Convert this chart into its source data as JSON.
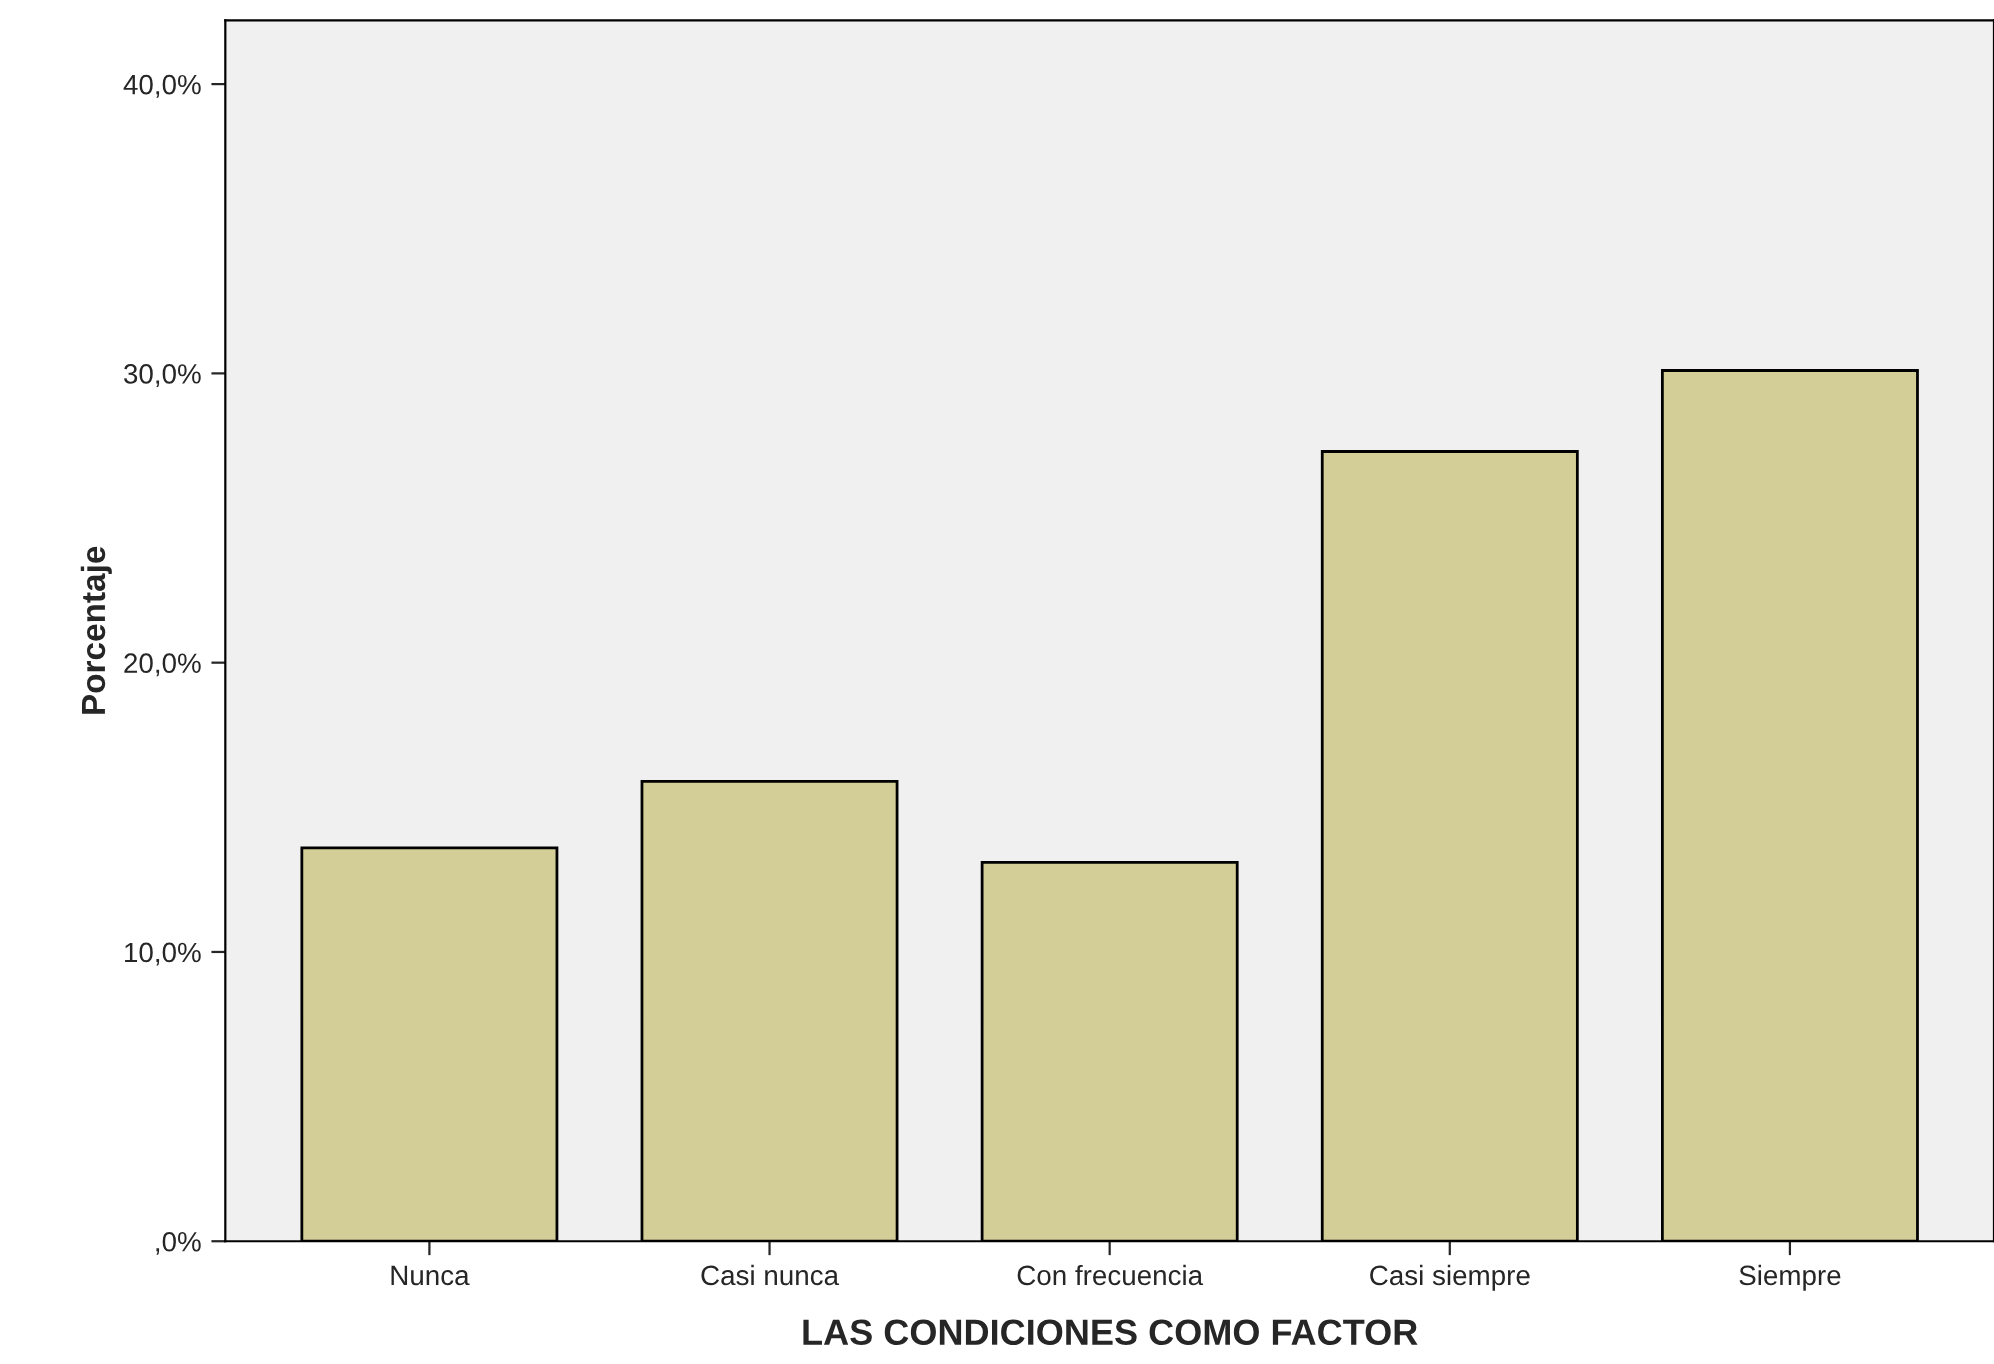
{
  "chart_data": {
    "type": "bar",
    "xlabel": "LAS CONDICIONES COMO FACTOR",
    "ylabel": "Porcentaje",
    "categories": [
      "Nunca",
      "Casi nunca",
      "Con frecuencia",
      "Casi siempre",
      "Siempre"
    ],
    "values": [
      13.6,
      15.9,
      13.1,
      27.3,
      30.1
    ],
    "color": "#d3ce97",
    "ylim": [
      0,
      42.2
    ],
    "yticks": [
      {
        "value": 0,
        "label": ",0%"
      },
      {
        "value": 10,
        "label": "10,0%"
      },
      {
        "value": 20,
        "label": "20,0%"
      },
      {
        "value": 30,
        "label": "30,0%"
      },
      {
        "value": 40,
        "label": "40,0%"
      }
    ],
    "grid": false
  }
}
